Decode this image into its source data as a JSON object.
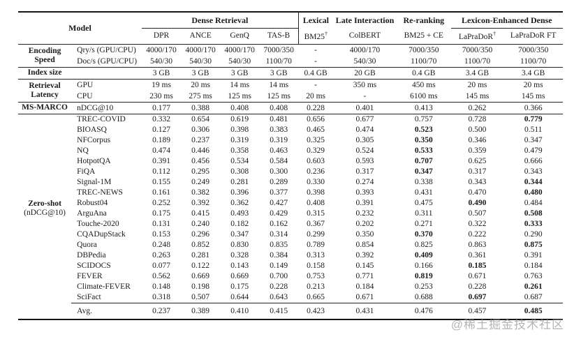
{
  "watermark": "@稀土掘金技术社区",
  "table": {
    "header": {
      "model_label": "Model",
      "groups": [
        {
          "label": "Dense Retrieval",
          "span": 4,
          "underline": true
        },
        {
          "label": "Lexical",
          "span": 1,
          "vline": true
        },
        {
          "label": "Late Interaction",
          "span": 1
        },
        {
          "label": "Re-ranking",
          "span": 1
        },
        {
          "label": "Lexicon-Enhanced Dense",
          "span": 2,
          "underline": true
        }
      ],
      "models": [
        {
          "label": "DPR"
        },
        {
          "label": "ANCE"
        },
        {
          "label": "GenQ"
        },
        {
          "label": "TAS-B"
        },
        {
          "label": "BM25",
          "sup": "†",
          "vline": true
        },
        {
          "label": "ColBERT"
        },
        {
          "label": "BM25 + CE"
        },
        {
          "label": "LaPraDoR",
          "sup": "†"
        },
        {
          "label": "LaPraDoR FT"
        }
      ]
    },
    "sections": [
      {
        "id": "encoding-speed",
        "label_lines": [
          {
            "text": "Encoding",
            "bold": true
          },
          {
            "text": "Speed",
            "bold": true
          }
        ],
        "rows": [
          {
            "sub": "Qry/s (GPU/CPU)",
            "values": [
              "4000/170",
              "4000/170",
              "4000/170",
              "7000/350",
              "-",
              "4000/170",
              "7000/350",
              "7000/350",
              "7000/350"
            ],
            "bold": []
          },
          {
            "sub": "Doc/s (GPU/CPU)",
            "values": [
              "540/30",
              "540/30",
              "540/30",
              "1100/70",
              "-",
              "540/30",
              "1100/70",
              "1100/70",
              "1100/70"
            ],
            "bold": []
          }
        ]
      },
      {
        "id": "index-size",
        "label_lines": [
          {
            "text": "Index size",
            "bold": true
          }
        ],
        "rows": [
          {
            "sub": "",
            "values": [
              "3 GB",
              "3 GB",
              "3 GB",
              "3 GB",
              "0.4 GB",
              "20 GB",
              "0.4 GB",
              "3.4 GB",
              "3.4 GB"
            ],
            "bold": []
          }
        ]
      },
      {
        "id": "retrieval-latency",
        "label_lines": [
          {
            "text": "Retrieval",
            "bold": true
          },
          {
            "text": "Latency",
            "bold": true
          }
        ],
        "rows": [
          {
            "sub": "GPU",
            "values": [
              "19 ms",
              "20 ms",
              "14 ms",
              "14 ms",
              "-",
              "350 ms",
              "450 ms",
              "20 ms",
              "20 ms"
            ],
            "bold": []
          },
          {
            "sub": "CPU",
            "values": [
              "230 ms",
              "275 ms",
              "125 ms",
              "125 ms",
              "20 ms",
              "-",
              "6100 ms",
              "145 ms",
              "145 ms"
            ],
            "bold": []
          }
        ]
      },
      {
        "id": "ms-marco",
        "label_lines": [
          {
            "text": "MS-MARCO",
            "bold": true
          }
        ],
        "rows": [
          {
            "sub": "nDCG@10",
            "values": [
              "0.177",
              "0.388",
              "0.408",
              "0.408",
              "0.228",
              "0.401",
              "0.413",
              "0.262",
              "0.366"
            ],
            "bold": []
          }
        ]
      },
      {
        "id": "zero-shot",
        "label_lines": [
          {
            "text": "Zero-shot",
            "bold": true
          },
          {
            "text": "(nDCG@10)",
            "bold": false
          }
        ],
        "rows": [
          {
            "sub": "TREC-COVID",
            "values": [
              "0.332",
              "0.654",
              "0.619",
              "0.481",
              "0.656",
              "0.677",
              "0.757",
              "0.728",
              "0.779"
            ],
            "bold": [
              8
            ]
          },
          {
            "sub": "BIOASQ",
            "values": [
              "0.127",
              "0.306",
              "0.398",
              "0.383",
              "0.465",
              "0.474",
              "0.523",
              "0.500",
              "0.511"
            ],
            "bold": [
              6
            ]
          },
          {
            "sub": "NFCorpus",
            "values": [
              "0.189",
              "0.237",
              "0.319",
              "0.319",
              "0.325",
              "0.305",
              "0.350",
              "0.346",
              "0.347"
            ],
            "bold": [
              6
            ]
          },
          {
            "sub": "NQ",
            "values": [
              "0.474",
              "0.446",
              "0.358",
              "0.463",
              "0.329",
              "0.524",
              "0.533",
              "0.359",
              "0.479"
            ],
            "bold": [
              6
            ]
          },
          {
            "sub": "HotpotQA",
            "values": [
              "0.391",
              "0.456",
              "0.534",
              "0.584",
              "0.603",
              "0.593",
              "0.707",
              "0.625",
              "0.666"
            ],
            "bold": [
              6
            ]
          },
          {
            "sub": "FiQA",
            "values": [
              "0.112",
              "0.295",
              "0.308",
              "0.300",
              "0.236",
              "0.317",
              "0.347",
              "0.317",
              "0.343"
            ],
            "bold": [
              6
            ]
          },
          {
            "sub": "Signal-1M",
            "values": [
              "0.155",
              "0.249",
              "0.281",
              "0.289",
              "0.330",
              "0.274",
              "0.338",
              "0.343",
              "0.344"
            ],
            "bold": [
              8
            ]
          },
          {
            "sub": "TREC-NEWS",
            "values": [
              "0.161",
              "0.382",
              "0.396",
              "0.377",
              "0.398",
              "0.393",
              "0.431",
              "0.470",
              "0.480"
            ],
            "bold": [
              8
            ]
          },
          {
            "sub": "Robust04",
            "values": [
              "0.252",
              "0.392",
              "0.362",
              "0.427",
              "0.408",
              "0.391",
              "0.475",
              "0.490",
              "0.484"
            ],
            "bold": [
              7
            ]
          },
          {
            "sub": "ArguAna",
            "values": [
              "0.175",
              "0.415",
              "0.493",
              "0.429",
              "0.315",
              "0.232",
              "0.311",
              "0.507",
              "0.508"
            ],
            "bold": [
              8
            ]
          },
          {
            "sub": "Touche-2020",
            "values": [
              "0.131",
              "0.240",
              "0.182",
              "0.162",
              "0.367",
              "0.202",
              "0.271",
              "0.322",
              "0.333"
            ],
            "bold": [
              8
            ]
          },
          {
            "sub": "CQADupStack",
            "values": [
              "0.153",
              "0.296",
              "0.347",
              "0.314",
              "0.299",
              "0.350",
              "0.370",
              "0.222",
              "0.290"
            ],
            "bold": [
              6
            ]
          },
          {
            "sub": "Quora",
            "values": [
              "0.248",
              "0.852",
              "0.830",
              "0.835",
              "0.789",
              "0.854",
              "0.825",
              "0.863",
              "0.875"
            ],
            "bold": [
              8
            ]
          },
          {
            "sub": "DBPedia",
            "values": [
              "0.263",
              "0.281",
              "0.328",
              "0.384",
              "0.313",
              "0.392",
              "0.409",
              "0.361",
              "0.391"
            ],
            "bold": [
              6
            ]
          },
          {
            "sub": "SCIDOCS",
            "values": [
              "0.077",
              "0.122",
              "0.143",
              "0.149",
              "0.158",
              "0.145",
              "0.166",
              "0.185",
              "0.184"
            ],
            "bold": [
              7
            ]
          },
          {
            "sub": "FEVER",
            "values": [
              "0.562",
              "0.669",
              "0.669",
              "0.700",
              "0.753",
              "0.771",
              "0.819",
              "0.671",
              "0.763"
            ],
            "bold": [
              6
            ]
          },
          {
            "sub": "Climate-FEVER",
            "values": [
              "0.148",
              "0.198",
              "0.175",
              "0.228",
              "0.213",
              "0.184",
              "0.253",
              "0.228",
              "0.261"
            ],
            "bold": [
              8
            ]
          },
          {
            "sub": "SciFact",
            "values": [
              "0.318",
              "0.507",
              "0.644",
              "0.643",
              "0.665",
              "0.671",
              "0.688",
              "0.697",
              "0.687"
            ],
            "bold": [
              7
            ]
          }
        ]
      },
      {
        "id": "avg",
        "label_lines": [],
        "rows": [
          {
            "sub": "Avg.",
            "values": [
              "0.237",
              "0.389",
              "0.410",
              "0.415",
              "0.423",
              "0.431",
              "0.476",
              "0.457",
              "0.485"
            ],
            "bold": [
              8
            ]
          }
        ]
      }
    ]
  }
}
